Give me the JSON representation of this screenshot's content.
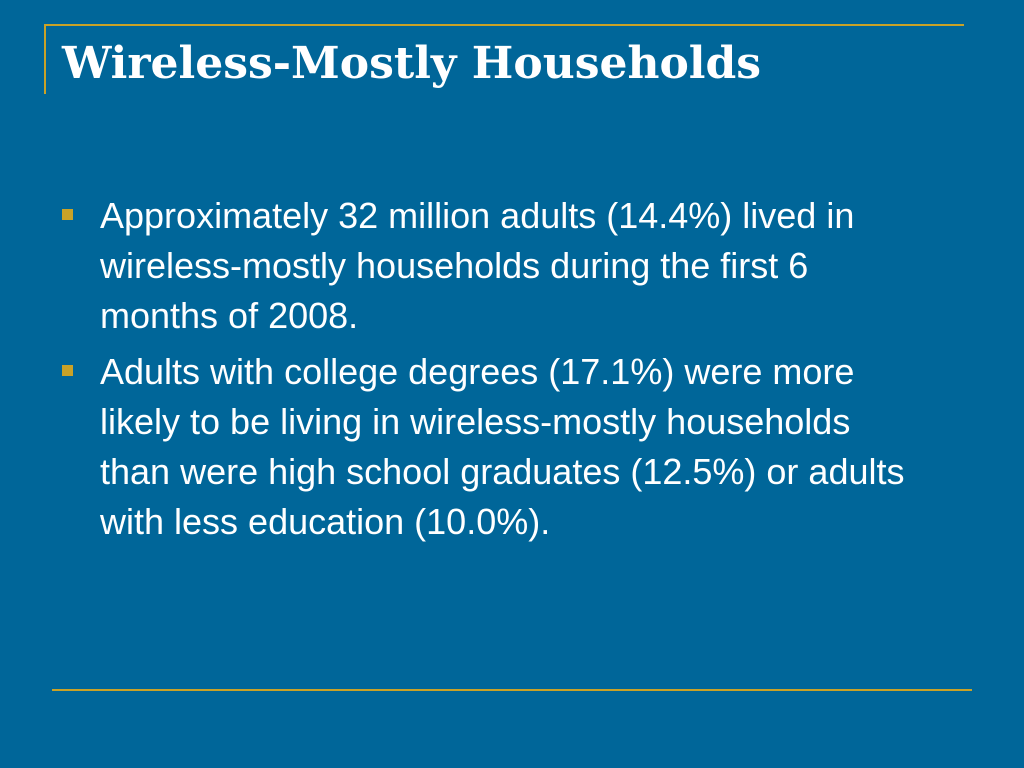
{
  "slide": {
    "title": "Wireless-Mostly Households",
    "accent_color": "#c9a227",
    "background_color": "#006699",
    "bullets": [
      {
        "text": "Approximately 32 million adults (14.4%) lived in wireless-mostly households during the first 6 months of 2008."
      },
      {
        "text": "Adults with college degrees (17.1%) were more likely to be living in wireless-mostly households than were high school graduates (12.5%) or adults with less education (10.0%)."
      }
    ]
  }
}
